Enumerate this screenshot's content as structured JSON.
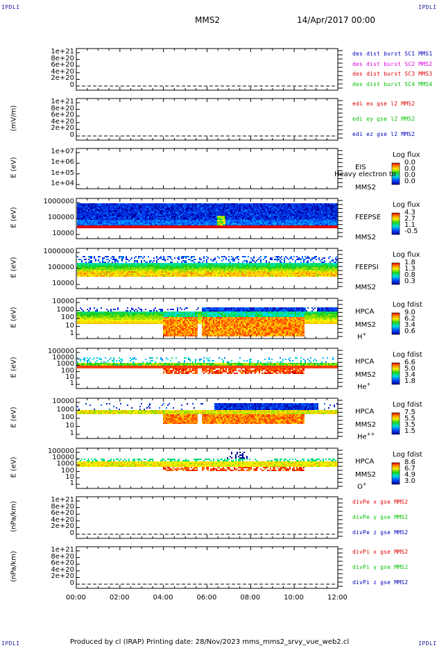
{
  "header": {
    "corner_tl": "IPDLI",
    "corner_tr": "IPDLI",
    "corner_bl": "IPDLI",
    "corner_br": "IPDLI",
    "spacecraft": "MMS2",
    "date": "14/Apr/2017 00:00"
  },
  "footer": "Produced by cl (IRAP)    Printing date: 28/Nov/2023    mms_mms2_srvy_vue_web2.cl",
  "colors": {
    "red": "#e00000",
    "magenta": "#e000e0",
    "green": "#00c000",
    "blue": "#0000c0"
  },
  "chart_data": [
    {
      "type": "line",
      "id": "des-dist",
      "ylabel": "",
      "ticks": [
        "1e+21",
        "8e+20",
        "6e+20",
        "4e+20",
        "2e+20",
        "0"
      ],
      "series": [
        {
          "name": "des dist burst SC1 MMS1",
          "color": "#0000c0"
        },
        {
          "name": "des dist burst SC2 MMS2",
          "color": "#e000e0"
        },
        {
          "name": "des dist burst SC3 MMS3",
          "color": "#e00000"
        },
        {
          "name": "des dist burst SC4 MMS4",
          "color": "#00c000"
        }
      ]
    },
    {
      "type": "line",
      "id": "edi",
      "ylabel": "(mV/m)",
      "ticks": [
        "1e+21",
        "8e+20",
        "6e+20",
        "4e+20",
        "2e+20",
        "0"
      ],
      "series": [
        {
          "name": "edi ex gse l2 MMS2",
          "color": "#e00000"
        },
        {
          "name": "edi ey gse l2 MMS2",
          "color": "#00c000"
        },
        {
          "name": "edi ez gse l2 MMS2",
          "color": "#0000c0"
        }
      ]
    },
    {
      "type": "heatmap",
      "id": "eis",
      "ylabel": "E (eV)",
      "ticks": [
        "1e+07",
        "1e+06",
        "1e+05",
        "1e+04"
      ],
      "labels": [
        "EIS",
        "MMS2"
      ],
      "overlay": "Heavy electron to",
      "cb_title": "Log flux",
      "cb_values": [
        "0.0",
        "0.0",
        "0.0",
        "0.0"
      ]
    },
    {
      "type": "heatmap",
      "id": "feepse",
      "ylabel": "E (eV)",
      "ticks": [
        "1000000",
        "100000",
        "10000"
      ],
      "labels": [
        "FEEPSE",
        "MMS2"
      ],
      "cb_title": "Log flux",
      "cb_values": [
        "4.3",
        "2.7",
        "1.1",
        "-0.5"
      ]
    },
    {
      "type": "heatmap",
      "id": "feepsi",
      "ylabel": "E (eV)",
      "ticks": [
        "1000000",
        "100000",
        "10000"
      ],
      "labels": [
        "FEEPSI",
        "MMS2"
      ],
      "cb_title": "Log flux",
      "cb_values": [
        "1.8",
        "1.3",
        "0.8",
        "0.3"
      ]
    },
    {
      "type": "heatmap",
      "id": "hpca-h",
      "ylabel": "E (eV)",
      "ticks": [
        "10000",
        "1000",
        "100",
        "10",
        "1"
      ],
      "labels": [
        "HPCA",
        "MMS2"
      ],
      "species": "H",
      "species_sup": "+",
      "cb_title": "Log fdist",
      "cb_values": [
        "9.0",
        "6.2",
        "3.4",
        "0.6"
      ]
    },
    {
      "type": "heatmap",
      "id": "hpca-he",
      "ylabel": "E (eV)",
      "ticks": [
        "100000",
        "10000",
        "1000",
        "100",
        "10",
        "1"
      ],
      "labels": [
        "HPCA",
        "MMS2"
      ],
      "species": "He",
      "species_sup": "+",
      "cb_title": "Log fdist",
      "cb_values": [
        "6.6",
        "5.0",
        "3.4",
        "1.8"
      ]
    },
    {
      "type": "heatmap",
      "id": "hpca-he2",
      "ylabel": "E (eV)",
      "ticks": [
        "10000",
        "1000",
        "100",
        "10",
        "1"
      ],
      "labels": [
        "HPCA",
        "MMS2"
      ],
      "species": "He",
      "species_sup": "++",
      "cb_title": "Log fdist",
      "cb_values": [
        "7.5",
        "5.5",
        "3.5",
        "1.5"
      ]
    },
    {
      "type": "heatmap",
      "id": "hpca-o",
      "ylabel": "E (eV)",
      "ticks": [
        "100000",
        "10000",
        "1000",
        "100",
        "10",
        "1"
      ],
      "labels": [
        "HPCA",
        "MMS2"
      ],
      "species": "O",
      "species_sup": "+",
      "cb_title": "Log fdist",
      "cb_values": [
        "8.6",
        "6.7",
        "4.9",
        "3.0"
      ]
    },
    {
      "type": "line",
      "id": "divpe",
      "ylabel": "(nPa/km)",
      "ticks": [
        "1e+21",
        "8e+20",
        "6e+20",
        "4e+20",
        "2e+20",
        "0"
      ],
      "series": [
        {
          "name": "divPe x gse MMS2",
          "color": "#e00000"
        },
        {
          "name": "divPe y gse MMS2",
          "color": "#00c000"
        },
        {
          "name": "divPe z gse MMS2",
          "color": "#0000c0"
        }
      ]
    },
    {
      "type": "line",
      "id": "divpi",
      "ylabel": "(nPa/km)",
      "ticks": [
        "1e+21",
        "8e+20",
        "6e+20",
        "4e+20",
        "2e+20",
        "0"
      ],
      "series": [
        {
          "name": "divPi x gse MMS2",
          "color": "#e00000"
        },
        {
          "name": "divPi y gse MMS2",
          "color": "#00c000"
        },
        {
          "name": "divPi z gse MMS2",
          "color": "#0000c0"
        }
      ]
    }
  ],
  "xaxis": {
    "ticks": [
      "00:00",
      "02:00",
      "04:00",
      "06:00",
      "08:00",
      "10:00",
      "12:00"
    ]
  }
}
